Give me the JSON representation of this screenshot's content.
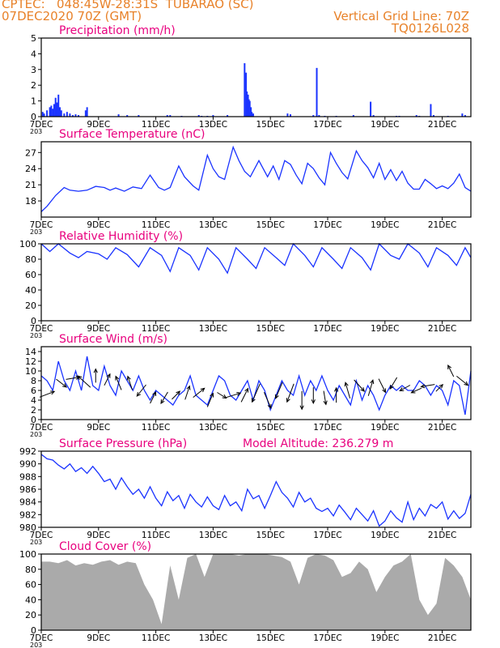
{
  "header": {
    "line1": "CPTEC:   048:45W-28:31S  TUBARAO (SC)",
    "line2": "07DEC2020 70Z (GMT)",
    "grid_note": "Vertical Grid Line: 70Z",
    "run_code": "TQ0126L028"
  },
  "colors": {
    "header": "#e8822a",
    "title": "#e8007e",
    "line": "#1a33ff",
    "cloud": "#aaaaaa",
    "arrow": "#000000"
  },
  "x_ticks": [
    "7DEC",
    "9DEC",
    "11DEC",
    "13DEC",
    "15DEC",
    "17DEC",
    "19DEC",
    "21DEC"
  ],
  "x_tick_sub": "203",
  "chart_data": [
    {
      "type": "bar",
      "title": "Precipitation (mm/h)",
      "ylim": [
        0,
        5
      ],
      "yticks": [
        0,
        1,
        2,
        3,
        4,
        5
      ],
      "x_days": [
        0.05,
        0.1,
        0.2,
        0.3,
        0.35,
        0.4,
        0.45,
        0.5,
        0.55,
        0.6,
        0.65,
        0.7,
        0.8,
        0.9,
        1.0,
        1.1,
        1.2,
        1.3,
        1.55,
        1.6,
        2.7,
        3.0,
        3.4,
        4.4,
        4.5,
        4.9,
        5.5,
        5.6,
        5.8,
        6.0,
        6.5,
        7.1,
        7.15,
        7.18,
        7.2,
        7.22,
        7.25,
        7.28,
        7.32,
        7.35,
        7.4,
        8.6,
        8.7,
        9.5,
        9.62,
        9.7,
        9.9,
        10.3,
        10.9,
        11.5,
        11.6,
        12.4,
        12.5,
        13.1,
        13.2,
        13.6,
        13.7,
        14.2,
        14.7,
        14.8
      ],
      "values": [
        0.3,
        0.2,
        0.4,
        0.6,
        0.7,
        0.5,
        0.8,
        1.2,
        0.9,
        1.4,
        0.6,
        0.4,
        0.2,
        0.3,
        0.2,
        0.1,
        0.15,
        0.1,
        0.4,
        0.6,
        0.15,
        0.1,
        0.1,
        0.1,
        0.1,
        0.05,
        0.1,
        0.05,
        0.05,
        0.1,
        0.1,
        3.4,
        2.8,
        1.6,
        1.2,
        1.4,
        1.1,
        1.0,
        0.6,
        0.3,
        0.2,
        0.2,
        0.15,
        0.1,
        3.1,
        0.1,
        0.05,
        0.05,
        0.1,
        0.95,
        0.1,
        0.05,
        0.05,
        0.1,
        0.05,
        0.8,
        0.1,
        0.05,
        0.2,
        0.1
      ]
    },
    {
      "type": "line",
      "title": "Surface Temperature (nC)",
      "ylim": [
        15,
        29
      ],
      "yticks": [
        18,
        21,
        24,
        27
      ],
      "x": [
        0,
        0.2,
        0.5,
        0.8,
        1.0,
        1.3,
        1.6,
        1.9,
        2.2,
        2.4,
        2.6,
        2.9,
        3.2,
        3.5,
        3.8,
        4.1,
        4.3,
        4.5,
        4.8,
        5.0,
        5.3,
        5.5,
        5.8,
        6.0,
        6.2,
        6.4,
        6.7,
        6.9,
        7.1,
        7.3,
        7.6,
        7.9,
        8.1,
        8.3,
        8.5,
        8.7,
        8.9,
        9.1,
        9.3,
        9.5,
        9.7,
        9.9,
        10.1,
        10.3,
        10.5,
        10.7,
        11.0,
        11.2,
        11.4,
        11.6,
        11.8,
        12.0,
        12.2,
        12.4,
        12.6,
        12.8,
        13.0,
        13.2,
        13.4,
        13.6,
        13.8,
        14.0,
        14.2,
        14.4,
        14.6,
        14.8,
        15.0
      ],
      "values": [
        16,
        17,
        19,
        20.5,
        20,
        19.8,
        20,
        20.7,
        20.5,
        20,
        20.4,
        19.8,
        20.6,
        20.3,
        22.8,
        20.5,
        20,
        20.5,
        24.5,
        22.5,
        20.8,
        20,
        26.5,
        24,
        22.5,
        22,
        28,
        25.5,
        23.5,
        22.5,
        25.5,
        22.5,
        24.5,
        22,
        25.5,
        24.8,
        22.8,
        21.2,
        25,
        24,
        22.3,
        21,
        27,
        25,
        23.3,
        22.1,
        27.3,
        25.5,
        24.2,
        22.3,
        25,
        22,
        23.8,
        21.8,
        23.5,
        21.3,
        20.2,
        20.2,
        22,
        21.2,
        20.3,
        20.8,
        20.3,
        21.3,
        23,
        20.5,
        19.8
      ]
    },
    {
      "type": "line",
      "title": "Relative Humidity (%)",
      "ylim": [
        0,
        100
      ],
      "yticks": [
        0,
        20,
        40,
        60,
        80,
        100
      ],
      "x": [
        0,
        0.3,
        0.6,
        1.0,
        1.3,
        1.6,
        2.0,
        2.3,
        2.6,
        3.0,
        3.4,
        3.8,
        4.2,
        4.5,
        4.8,
        5.2,
        5.5,
        5.8,
        6.2,
        6.5,
        6.8,
        7.2,
        7.5,
        7.8,
        8.2,
        8.5,
        8.8,
        9.2,
        9.5,
        9.8,
        10.2,
        10.5,
        10.8,
        11.2,
        11.5,
        11.8,
        12.2,
        12.5,
        12.8,
        13.2,
        13.5,
        13.8,
        14.2,
        14.5,
        14.8,
        15.0
      ],
      "values": [
        100,
        90,
        100,
        88,
        82,
        90,
        87,
        80,
        95,
        86,
        70,
        95,
        85,
        64,
        95,
        85,
        66,
        95,
        80,
        62,
        95,
        80,
        68,
        95,
        82,
        72,
        100,
        85,
        70,
        95,
        80,
        68,
        95,
        82,
        66,
        100,
        85,
        80,
        100,
        88,
        70,
        95,
        85,
        72,
        95,
        82
      ]
    },
    {
      "type": "line",
      "title": "Surface Wind (m/s)",
      "ylim": [
        0,
        15
      ],
      "yticks": [
        0,
        2,
        4,
        6,
        8,
        10,
        12,
        14
      ],
      "x": [
        0,
        0.2,
        0.4,
        0.6,
        0.8,
        1.0,
        1.2,
        1.4,
        1.6,
        1.8,
        2.0,
        2.2,
        2.4,
        2.6,
        2.8,
        3.0,
        3.2,
        3.4,
        3.6,
        3.8,
        4.0,
        4.2,
        4.4,
        4.6,
        4.8,
        5.0,
        5.2,
        5.4,
        5.6,
        5.8,
        6.0,
        6.2,
        6.4,
        6.6,
        6.8,
        7.0,
        7.2,
        7.4,
        7.6,
        7.8,
        8.0,
        8.2,
        8.4,
        8.6,
        8.8,
        9.0,
        9.2,
        9.4,
        9.6,
        9.8,
        10.0,
        10.2,
        10.4,
        10.6,
        10.8,
        11.0,
        11.2,
        11.4,
        11.6,
        11.8,
        12.0,
        12.2,
        12.4,
        12.6,
        12.8,
        13.0,
        13.2,
        13.4,
        13.6,
        13.8,
        14.0,
        14.2,
        14.4,
        14.6,
        14.8,
        15.0
      ],
      "values": [
        9,
        8,
        6,
        12,
        8,
        6,
        10,
        6,
        13,
        7,
        6,
        11,
        7,
        5,
        10,
        8,
        6,
        9,
        6,
        4,
        6,
        5,
        4,
        3,
        5,
        6,
        9,
        5,
        4,
        3,
        6,
        9,
        8,
        5,
        4,
        6,
        8,
        4,
        8,
        6,
        2,
        5,
        8,
        6,
        5,
        9,
        5,
        8,
        6,
        9,
        6,
        4,
        7,
        5,
        3,
        8,
        4,
        7,
        5,
        2,
        5,
        7,
        6,
        7,
        6,
        6,
        8,
        7,
        5,
        7,
        6,
        3,
        8,
        7,
        1,
        10
      ]
    },
    {
      "type": "line",
      "title": "Surface Pressure (hPa)",
      "annotation": "Model Altitude: 236.279 m",
      "ylim": [
        980,
        992
      ],
      "yticks": [
        980,
        982,
        984,
        986,
        988,
        990,
        992
      ],
      "x": [
        0,
        0.2,
        0.4,
        0.6,
        0.8,
        1.0,
        1.2,
        1.4,
        1.6,
        1.8,
        2.0,
        2.2,
        2.4,
        2.6,
        2.8,
        3.0,
        3.2,
        3.4,
        3.6,
        3.8,
        4.0,
        4.2,
        4.4,
        4.6,
        4.8,
        5.0,
        5.2,
        5.4,
        5.6,
        5.8,
        6.0,
        6.2,
        6.4,
        6.6,
        6.8,
        7.0,
        7.2,
        7.4,
        7.6,
        7.8,
        8.0,
        8.2,
        8.4,
        8.6,
        8.8,
        9.0,
        9.2,
        9.4,
        9.6,
        9.8,
        10.0,
        10.2,
        10.4,
        10.6,
        10.8,
        11.0,
        11.2,
        11.4,
        11.6,
        11.8,
        12.0,
        12.2,
        12.4,
        12.6,
        12.8,
        13.0,
        13.2,
        13.4,
        13.6,
        13.8,
        14.0,
        14.2,
        14.4,
        14.6,
        14.8,
        15.0
      ],
      "values": [
        991.5,
        990.8,
        990.6,
        989.8,
        989.2,
        990.0,
        988.8,
        989.4,
        988.5,
        989.6,
        988.5,
        987.2,
        987.6,
        986.0,
        987.8,
        986.4,
        985.2,
        986.0,
        984.6,
        986.4,
        984.6,
        983.4,
        985.6,
        984.2,
        985.0,
        983.0,
        985.2,
        984.0,
        983.2,
        984.8,
        983.4,
        982.8,
        985.0,
        983.4,
        984.0,
        982.6,
        986.0,
        984.5,
        985.0,
        983.0,
        985.0,
        987.2,
        985.5,
        984.6,
        983.2,
        985.5,
        984.0,
        984.6,
        983.0,
        982.5,
        983.0,
        981.8,
        983.5,
        982.4,
        981.2,
        983.0,
        982.0,
        981.0,
        982.6,
        980.2,
        981.0,
        982.6,
        981.5,
        980.8,
        984.0,
        981.2,
        983.0,
        981.8,
        983.6,
        983.0,
        984.0,
        981.3,
        982.6,
        981.4,
        982.2,
        985.2
      ]
    },
    {
      "type": "area",
      "title": "Cloud Cover (%)",
      "ylim": [
        0,
        100
      ],
      "yticks": [
        0,
        20,
        40,
        60,
        80,
        100
      ],
      "x": [
        0,
        0.3,
        0.6,
        0.9,
        1.2,
        1.5,
        1.8,
        2.1,
        2.4,
        2.7,
        3.0,
        3.3,
        3.6,
        3.9,
        4.2,
        4.5,
        4.8,
        5.1,
        5.4,
        5.7,
        6.0,
        6.3,
        6.6,
        6.9,
        7.2,
        7.5,
        7.8,
        8.1,
        8.4,
        8.7,
        9.0,
        9.3,
        9.6,
        9.9,
        10.2,
        10.5,
        10.8,
        11.1,
        11.4,
        11.7,
        12.0,
        12.3,
        12.6,
        12.9,
        13.2,
        13.5,
        13.8,
        14.1,
        14.4,
        14.7,
        15.0
      ],
      "values": [
        90,
        90,
        88,
        92,
        85,
        88,
        86,
        90,
        92,
        86,
        90,
        88,
        60,
        40,
        8,
        85,
        40,
        95,
        100,
        70,
        100,
        100,
        100,
        98,
        100,
        100,
        100,
        98,
        96,
        90,
        60,
        95,
        100,
        98,
        92,
        70,
        75,
        90,
        80,
        50,
        70,
        85,
        90,
        100,
        40,
        20,
        35,
        95,
        85,
        70,
        40
      ]
    }
  ],
  "wind_arrows": {
    "x": [
      0.2,
      0.7,
      1.1,
      1.5,
      1.9,
      2.3,
      2.7,
      3.1,
      3.5,
      3.9,
      4.3,
      4.7,
      5.1,
      5.5,
      5.9,
      6.3,
      6.7,
      7.1,
      7.5,
      7.9,
      8.3,
      8.7,
      9.1,
      9.5,
      9.9,
      10.3,
      10.7,
      11.1,
      11.5,
      11.9,
      12.3,
      12.7,
      13.1,
      13.5,
      13.9,
      14.3,
      14.7
    ],
    "y": [
      5.2,
      7.5,
      8.5,
      7.8,
      9.0,
      8.2,
      7.5,
      7.5,
      6.0,
      4.5,
      4.5,
      5.0,
      5.5,
      5.5,
      4.0,
      5.0,
      5.0,
      5.0,
      5.5,
      4.0,
      6.0,
      5.5,
      4.0,
      5.0,
      4.5,
      5.0,
      6.0,
      7.0,
      6.5,
      7.0,
      7.5,
      6.5,
      6.0,
      7.0,
      6.5,
      10.0,
      8.0
    ],
    "u": [
      1.3,
      0.9,
      1.2,
      -1.1,
      0.0,
      0.5,
      -0.5,
      -0.4,
      -0.8,
      0.5,
      -0.6,
      0.7,
      0.4,
      1.0,
      0.5,
      0.8,
      1.3,
      0.6,
      -0.7,
      0.6,
      -0.6,
      -0.6,
      0.0,
      0.0,
      0.2,
      0.0,
      -0.4,
      0.9,
      0.4,
      0.6,
      -0.6,
      -0.9,
      -0.9,
      -1.2,
      0.6,
      -0.5,
      1.0
    ],
    "v": [
      0.5,
      -0.7,
      0.2,
      1.0,
      1.2,
      1.0,
      1.2,
      1.2,
      -1.0,
      1.0,
      -1.0,
      0.7,
      1.2,
      0.8,
      1.2,
      -0.5,
      0.4,
      1.2,
      -1.6,
      -1.4,
      -1.4,
      -1.6,
      -1.6,
      -1.4,
      -1.2,
      1.3,
      1.4,
      -1.0,
      1.4,
      -1.2,
      -1.0,
      -0.5,
      -0.4,
      -0.2,
      0.6,
      1.0,
      -0.8
    ]
  }
}
